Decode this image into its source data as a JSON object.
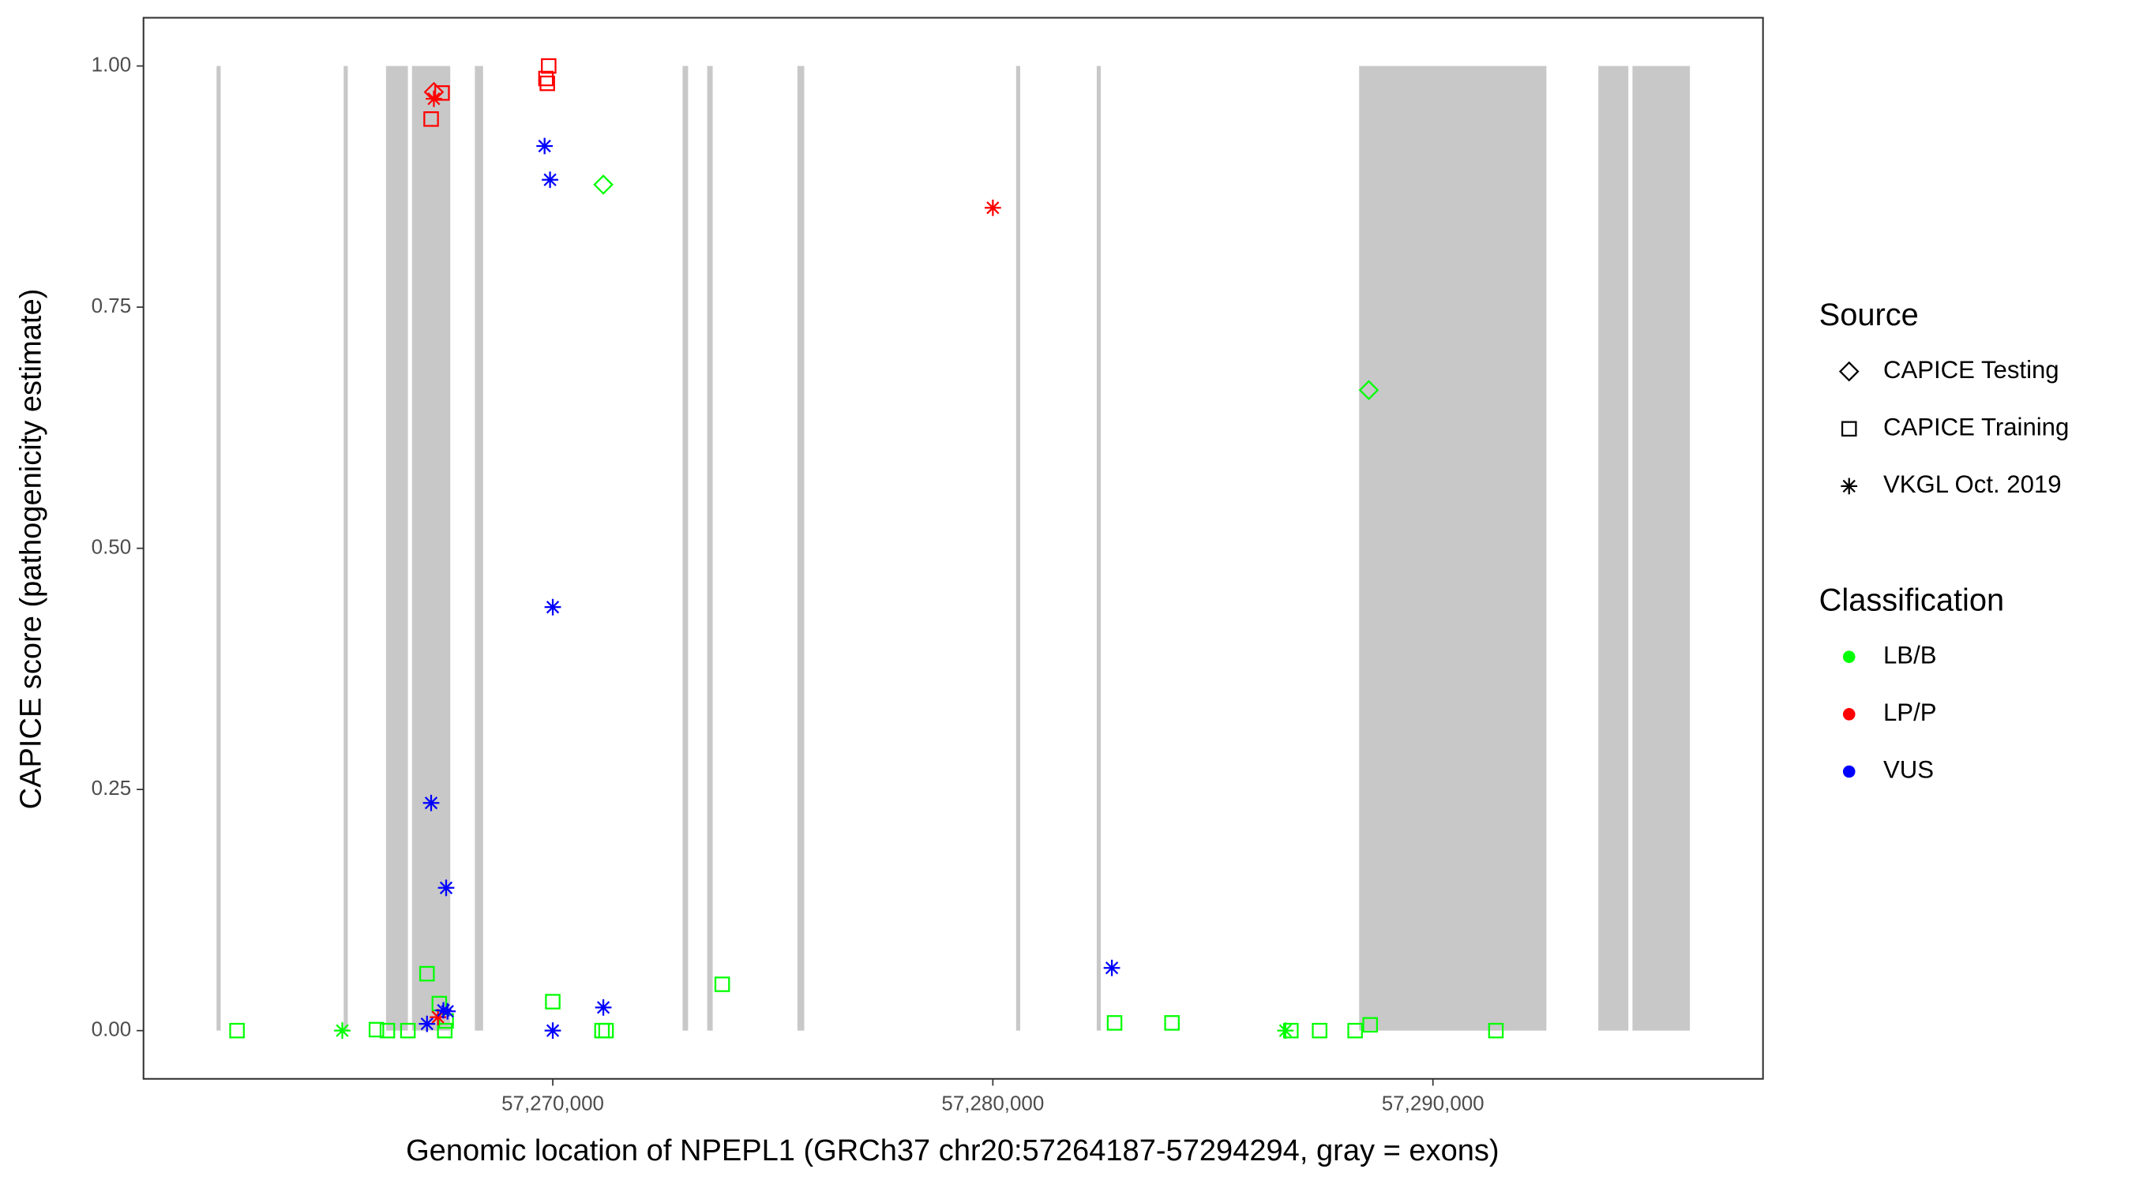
{
  "chart_data": {
    "type": "scatter",
    "x_label": "Genomic location of NPEPL1 (GRCh37 chr20:57264187-57294294, gray = exons)",
    "y_label": "CAPICE score (pathogenicity estimate)",
    "xlim": [
      57260700,
      57297500
    ],
    "ylim": [
      -0.05,
      1.05
    ],
    "xticks": [
      {
        "value": 57270000,
        "label": "57,270,000"
      },
      {
        "value": 57280000,
        "label": "57,280,000"
      },
      {
        "value": 57290000,
        "label": "57,290,000"
      }
    ],
    "yticks": [
      {
        "value": 0,
        "label": "0.00"
      },
      {
        "value": 0.25,
        "label": "0.25"
      },
      {
        "value": 0.5,
        "label": "0.50"
      },
      {
        "value": 0.75,
        "label": "0.75"
      },
      {
        "value": 1,
        "label": "1.00"
      }
    ],
    "exon_color": "#c8c8c8",
    "exons": [
      [
        57262360,
        57262453
      ],
      [
        57265248,
        57265342
      ],
      [
        57266211,
        57266708
      ],
      [
        57266801,
        57267671
      ],
      [
        57268230,
        57268416
      ],
      [
        57272950,
        57273075
      ],
      [
        57273509,
        57273634
      ],
      [
        57275559,
        57275714
      ],
      [
        57280528,
        57280621
      ],
      [
        57282360,
        57282453
      ],
      [
        57288323,
        57292578
      ],
      [
        57293758,
        57294441
      ],
      [
        57294534,
        57295839
      ]
    ],
    "shape_legend": {
      "title": "Source",
      "entries": [
        {
          "name": "CAPICE Testing",
          "shape": "diamond"
        },
        {
          "name": "CAPICE Training",
          "shape": "square"
        },
        {
          "name": "VKGL Oct. 2019",
          "shape": "asterisk"
        }
      ]
    },
    "color_legend": {
      "title": "Classification",
      "entries": [
        {
          "name": "LB/B",
          "color": "#00ff00"
        },
        {
          "name": "LP/P",
          "color": "#ff0000"
        },
        {
          "name": "VUS",
          "color": "#0000ff"
        }
      ]
    },
    "points": {
      "x": [
        57262825,
        57265993,
        57266242,
        57266708,
        57267142,
        57267422,
        57267546,
        57267577,
        57270000,
        57271118,
        57271211,
        57273851,
        57282766,
        57284070,
        57286772,
        57287425,
        57288232,
        57288574,
        57291431,
        57265217,
        57286648,
        57271149,
        57288543,
        57267236,
        57267484,
        57269845,
        57269876,
        57269907,
        57267298,
        57267298,
        57280000,
        57267391,
        57269814,
        57269938,
        57270000,
        57267236,
        57267577,
        57267142,
        57267515,
        57267608,
        57270000,
        57271149,
        57282704
      ],
      "y": [
        0,
        0.001,
        0,
        0,
        0.059,
        0.028,
        0,
        0.01,
        0.03,
        0,
        0,
        0.048,
        0.008,
        0.008,
        0,
        0,
        0,
        0.006,
        0,
        0,
        0,
        0.877,
        0.664,
        0.945,
        0.972,
        0.987,
        0.982,
        1.0,
        0.973,
        0.966,
        0.853,
        0.014,
        0.917,
        0.882,
        0.439,
        0.236,
        0.148,
        0.007,
        0.021,
        0.02,
        0,
        0.024,
        0.065
      ],
      "source": [
        "CAPICE Training",
        "CAPICE Training",
        "CAPICE Training",
        "CAPICE Training",
        "CAPICE Training",
        "CAPICE Training",
        "CAPICE Training",
        "CAPICE Training",
        "CAPICE Training",
        "CAPICE Training",
        "CAPICE Training",
        "CAPICE Training",
        "CAPICE Training",
        "CAPICE Training",
        "CAPICE Training",
        "CAPICE Training",
        "CAPICE Training",
        "CAPICE Training",
        "CAPICE Training",
        "VKGL Oct. 2019",
        "VKGL Oct. 2019",
        "CAPICE Testing",
        "CAPICE Testing",
        "CAPICE Training",
        "CAPICE Training",
        "CAPICE Training",
        "CAPICE Training",
        "CAPICE Training",
        "CAPICE Testing",
        "VKGL Oct. 2019",
        "VKGL Oct. 2019",
        "VKGL Oct. 2019",
        "VKGL Oct. 2019",
        "VKGL Oct. 2019",
        "VKGL Oct. 2019",
        "VKGL Oct. 2019",
        "VKGL Oct. 2019",
        "VKGL Oct. 2019",
        "VKGL Oct. 2019",
        "VKGL Oct. 2019",
        "VKGL Oct. 2019",
        "VKGL Oct. 2019",
        "VKGL Oct. 2019"
      ],
      "classification": [
        "LB/B",
        "LB/B",
        "LB/B",
        "LB/B",
        "LB/B",
        "LB/B",
        "LB/B",
        "LB/B",
        "LB/B",
        "LB/B",
        "LB/B",
        "LB/B",
        "LB/B",
        "LB/B",
        "LB/B",
        "LB/B",
        "LB/B",
        "LB/B",
        "LB/B",
        "LB/B",
        "LB/B",
        "LB/B",
        "LB/B",
        "LP/P",
        "LP/P",
        "LP/P",
        "LP/P",
        "LP/P",
        "LP/P",
        "LP/P",
        "LP/P",
        "LP/P",
        "VUS",
        "VUS",
        "VUS",
        "VUS",
        "VUS",
        "VUS",
        "VUS",
        "VUS",
        "VUS",
        "VUS",
        "VUS"
      ]
    }
  }
}
